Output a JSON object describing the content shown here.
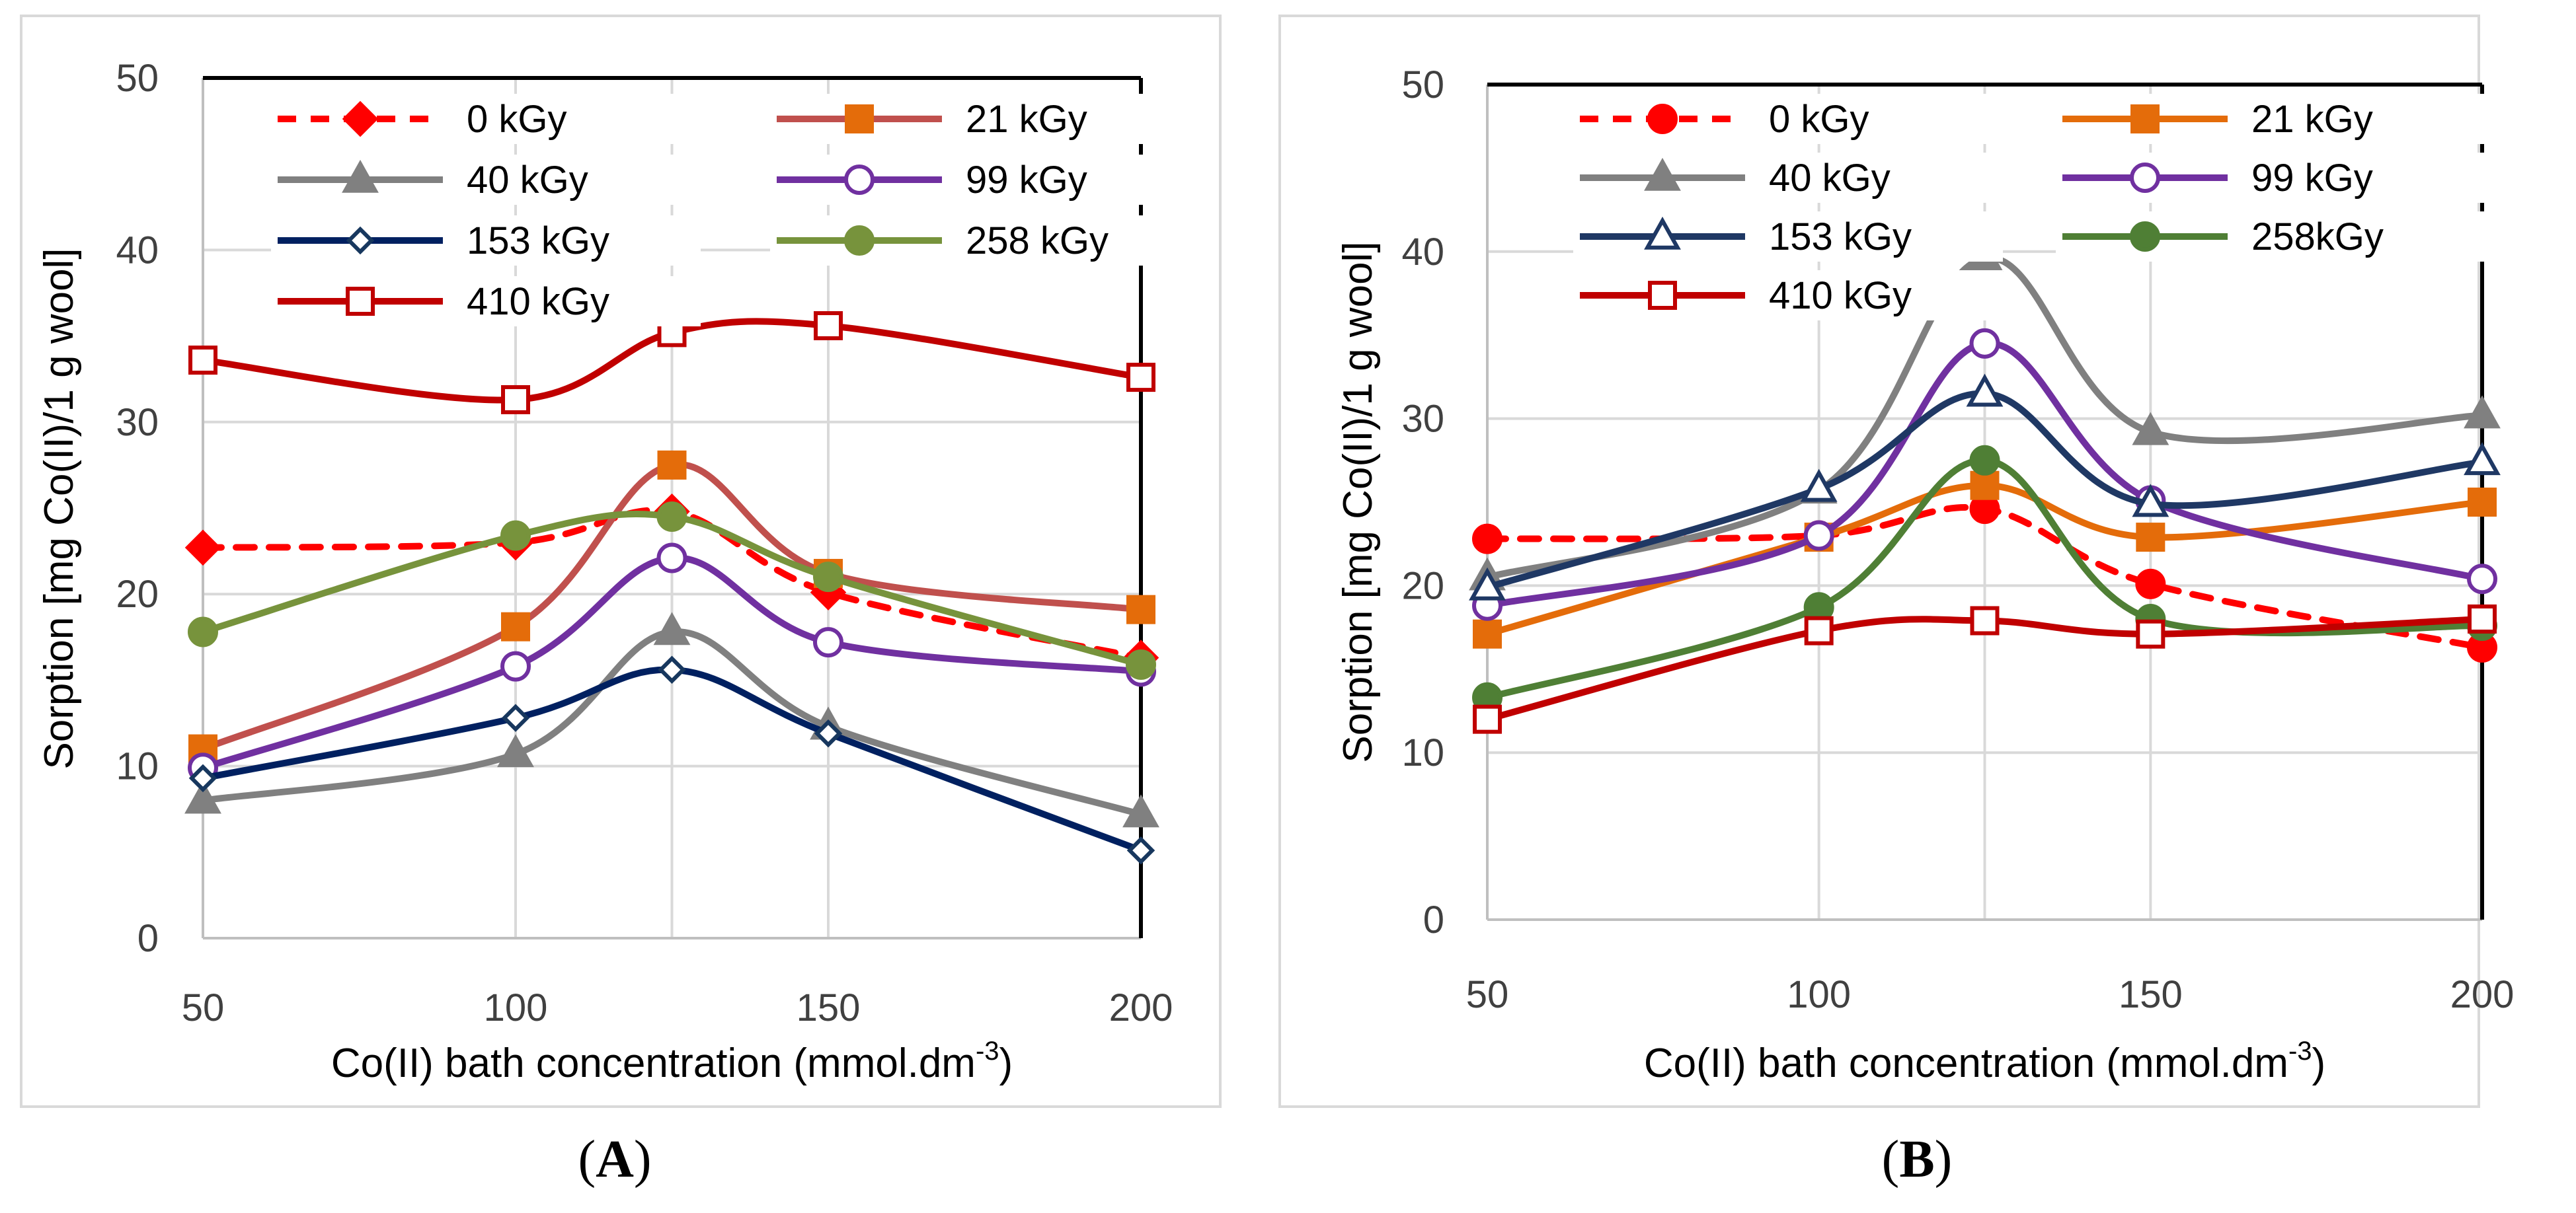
{
  "chart_data": [
    {
      "panel": "A",
      "type": "line",
      "caption": "A",
      "xlabel": "Co(II) bath concentration (mmol.dm",
      "xlabel_sup": "-3",
      "xlabel_end": ")",
      "ylabel": "Sorption [mg Co(II)/1 g wool]",
      "xlim": [
        50,
        200
      ],
      "ylim": [
        0,
        50
      ],
      "xticks": [
        50,
        100,
        150,
        200
      ],
      "yticks": [
        0,
        10,
        20,
        30,
        40,
        50
      ],
      "gridlines_x": [
        50,
        100,
        125,
        150,
        200
      ],
      "x": [
        50,
        100,
        125,
        150,
        200
      ],
      "legend_position": "top",
      "series": [
        {
          "name": "0 kGy",
          "color": "#ff0000",
          "dash": true,
          "marker": "diamond",
          "filled": true,
          "values": [
            22.7,
            23.0,
            24.8,
            20.1,
            16.3
          ]
        },
        {
          "name": "21 kGy",
          "color": "#c0504d",
          "markerColor": "#e46c0a",
          "dash": false,
          "marker": "square",
          "filled": true,
          "values": [
            11.0,
            18.1,
            27.5,
            21.2,
            19.1
          ]
        },
        {
          "name": "40 kGy",
          "color": "#808080",
          "dash": false,
          "marker": "triangle",
          "filled": true,
          "values": [
            8.0,
            10.7,
            17.8,
            12.3,
            7.2
          ]
        },
        {
          "name": "99 kGy",
          "color": "#7030a0",
          "dash": false,
          "marker": "circle",
          "filled": false,
          "values": [
            9.9,
            15.8,
            22.1,
            17.2,
            15.5
          ]
        },
        {
          "name": "153 kGy",
          "color": "#002060",
          "markerColor": "#17375e",
          "dash": false,
          "marker": "diamond",
          "filled": false,
          "values": [
            9.3,
            12.8,
            15.6,
            11.9,
            5.1
          ]
        },
        {
          "name": "258 kGy",
          "color": "#77933c",
          "dash": false,
          "marker": "circle",
          "filled": true,
          "values": [
            17.8,
            23.4,
            24.5,
            21.0,
            15.9
          ]
        },
        {
          "name": "410 kGy",
          "color": "#c00000",
          "dash": false,
          "marker": "square",
          "filled": false,
          "values": [
            33.6,
            31.3,
            35.2,
            35.6,
            32.6
          ]
        }
      ]
    },
    {
      "panel": "B",
      "type": "line",
      "caption": "B",
      "xlabel": "Co(II) bath concentration (mmol.dm",
      "xlabel_sup": "-3",
      "xlabel_end": ")",
      "ylabel": "Sorption [mg Co(II)/1 g wool]",
      "xlim": [
        50,
        200
      ],
      "ylim": [
        0,
        50
      ],
      "xticks": [
        50,
        100,
        150,
        200
      ],
      "yticks": [
        0,
        10,
        20,
        30,
        40,
        50
      ],
      "gridlines_x": [
        50,
        100,
        125,
        150,
        200
      ],
      "x": [
        50,
        100,
        125,
        150,
        200
      ],
      "legend_position": "top",
      "series": [
        {
          "name": "0 kGy",
          "color": "#ff0000",
          "dash": true,
          "marker": "circle",
          "filled": true,
          "values": [
            22.8,
            23.0,
            24.6,
            20.1,
            16.3
          ]
        },
        {
          "name": "21 kGy",
          "color": "#e46c0a",
          "dash": false,
          "marker": "square",
          "filled": true,
          "values": [
            17.1,
            22.9,
            26.0,
            22.9,
            25.0
          ]
        },
        {
          "name": "40 kGy",
          "color": "#808080",
          "dash": false,
          "marker": "triangle",
          "filled": true,
          "values": [
            20.5,
            25.7,
            39.6,
            29.2,
            30.2
          ]
        },
        {
          "name": "99 kGy",
          "color": "#7030a0",
          "dash": false,
          "marker": "circle",
          "filled": false,
          "values": [
            18.8,
            23.0,
            34.5,
            25.1,
            20.4
          ]
        },
        {
          "name": "153 kGy",
          "color": "#1f3864",
          "dash": false,
          "marker": "triangle",
          "filled": false,
          "values": [
            19.9,
            25.8,
            31.5,
            24.9,
            27.4
          ]
        },
        {
          "name": "258kGy",
          "color": "#4f7f35",
          "markerColor": "#4f7f35",
          "dash": false,
          "marker": "circle",
          "filled": true,
          "values": [
            13.3,
            18.7,
            27.5,
            18.0,
            17.6
          ]
        },
        {
          "name": "410 kGy",
          "color": "#c00000",
          "dash": false,
          "marker": "square",
          "filled": false,
          "values": [
            12.0,
            17.3,
            17.9,
            17.1,
            18.0
          ]
        }
      ]
    }
  ]
}
